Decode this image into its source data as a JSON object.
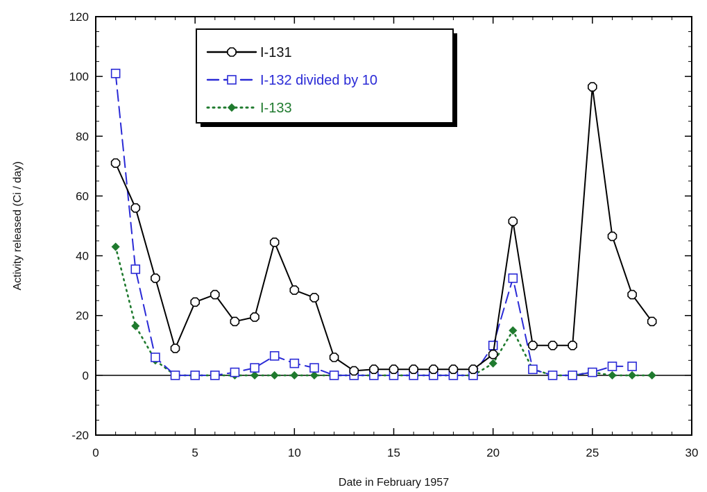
{
  "chart_data": {
    "type": "line",
    "title": "",
    "xlabel": "Date in February 1957",
    "ylabel": "Activity released (Ci / day)",
    "xlim": [
      0,
      30
    ],
    "ylim": [
      -20,
      120
    ],
    "x_ticks": [
      0,
      5,
      10,
      15,
      20,
      25,
      30
    ],
    "y_ticks": [
      -20,
      0,
      20,
      40,
      60,
      80,
      100,
      120
    ],
    "x_tick_labels": [
      "0",
      "5",
      "10",
      "15",
      "20",
      "25",
      "30"
    ],
    "y_tick_labels": [
      "-20",
      "0",
      "20",
      "40",
      "60",
      "80",
      "100",
      "120"
    ],
    "grid": false,
    "zero_line": true,
    "legend_position": "top-center",
    "series": [
      {
        "name": "I-131",
        "color": "#000000",
        "line_style": "solid",
        "marker": "octagon-open",
        "x": [
          1,
          2,
          3,
          4,
          5,
          6,
          7,
          8,
          9,
          10,
          11,
          12,
          13,
          14,
          15,
          16,
          17,
          18,
          19,
          20,
          21,
          22,
          23,
          24,
          25,
          26,
          27,
          28
        ],
        "y": [
          71,
          56,
          32.5,
          9,
          24.5,
          27,
          18,
          19.5,
          44.5,
          28.5,
          26,
          6,
          1.5,
          2,
          2,
          2,
          2,
          2,
          2,
          7,
          51.5,
          10,
          10,
          10,
          96.5,
          46.5,
          27,
          18
        ]
      },
      {
        "name": "I-132 divided by 10",
        "color": "#2a2ad6",
        "line_style": "dashed",
        "marker": "square-open",
        "x": [
          1,
          2,
          3,
          4,
          5,
          6,
          7,
          8,
          9,
          10,
          11,
          12,
          13,
          14,
          15,
          16,
          17,
          18,
          19,
          20,
          21,
          22,
          23,
          24,
          25,
          26,
          27
        ],
        "y": [
          101,
          35.5,
          6,
          0,
          0,
          0,
          1,
          2.5,
          6.5,
          4,
          2.5,
          0,
          0,
          0,
          0,
          0,
          0,
          0,
          0,
          10,
          32.5,
          2,
          0,
          0,
          1,
          3,
          3
        ]
      },
      {
        "name": "I-133",
        "color": "#1f7a2e",
        "line_style": "dotted",
        "marker": "diamond-filled",
        "x": [
          1,
          2,
          3,
          4,
          5,
          6,
          7,
          8,
          9,
          10,
          11,
          12,
          13,
          14,
          15,
          16,
          17,
          18,
          19,
          20,
          21,
          22,
          23,
          24,
          25,
          26,
          27,
          28
        ],
        "y": [
          43,
          16.5,
          5,
          0,
          0,
          0,
          0,
          0,
          0,
          0,
          0,
          0,
          0,
          0,
          0,
          0,
          0,
          0,
          0,
          4,
          15,
          2,
          0,
          0,
          1,
          0,
          0,
          0
        ]
      }
    ]
  }
}
